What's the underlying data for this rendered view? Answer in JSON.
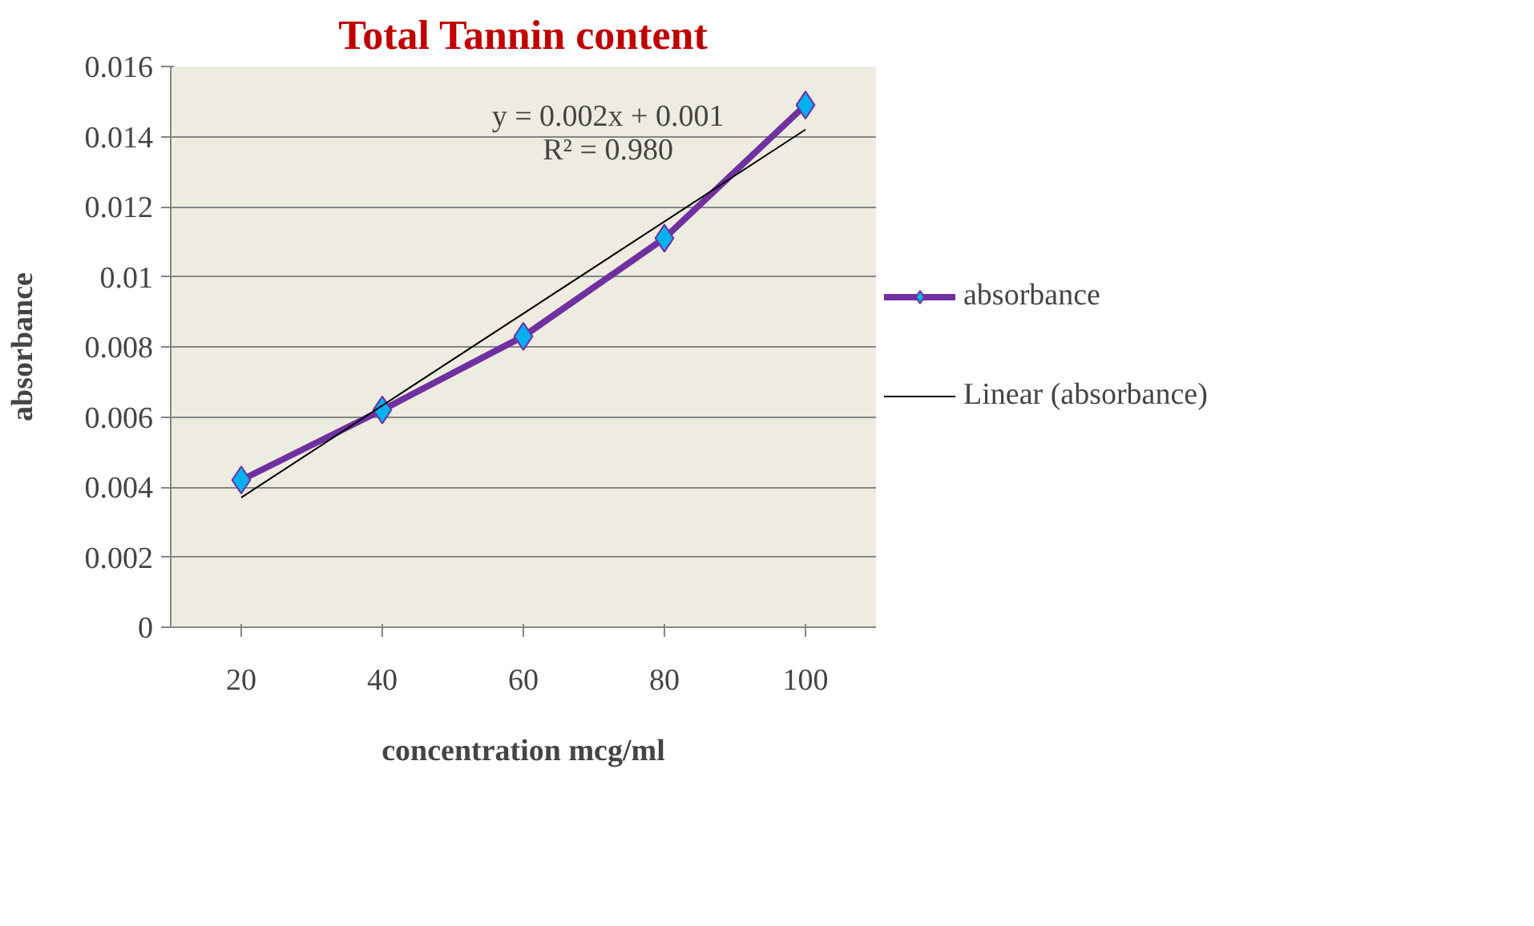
{
  "chart_data": {
    "type": "line",
    "title": "Total Tannin content",
    "xlabel": "concentration mcg/ml",
    "ylabel": "absorbance",
    "categories": [
      "20",
      "40",
      "60",
      "80",
      "100"
    ],
    "series": [
      {
        "name": "absorbance",
        "color": "#7030a0",
        "values": [
          0.0042,
          0.0062,
          0.0083,
          0.0111,
          0.0149
        ],
        "marker": "diamond"
      },
      {
        "name": "Linear (absorbance)",
        "color": "#000000",
        "type": "line",
        "x": [
          "20",
          "100"
        ],
        "values": [
          0.0037,
          0.0142
        ],
        "marker": "none"
      }
    ],
    "annotations": [
      "y = 0.002x + 0.001",
      "R² = 0.980"
    ],
    "ylim": [
      0,
      0.016
    ],
    "yticks": [
      0,
      0.002,
      0.004,
      0.006,
      0.008,
      0.01,
      0.012,
      0.014,
      0.016
    ],
    "grid": "y",
    "legend": "right"
  }
}
